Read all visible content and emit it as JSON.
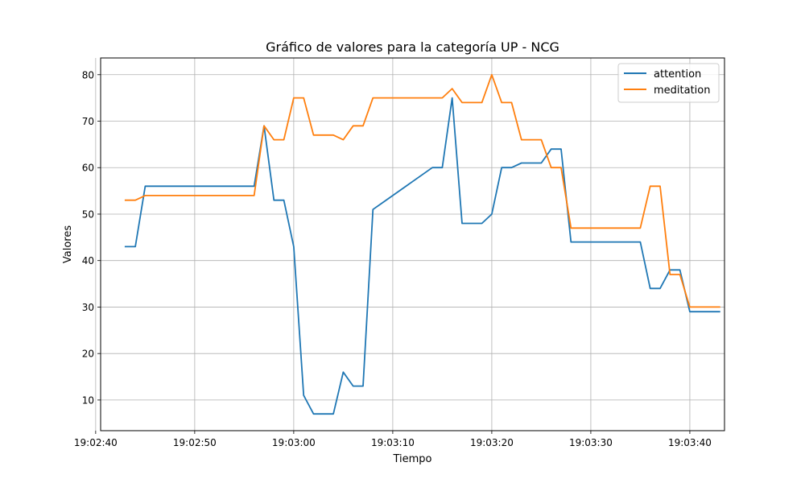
{
  "chart_data": {
    "type": "line",
    "title": "Gráfico de valores para la categoría UP - NCG",
    "xlabel": "Tiempo",
    "ylabel": "Valores",
    "x_unit": "time",
    "xlim": [
      "19:02:40.5",
      "19:03:43.5"
    ],
    "ylim": [
      3.4,
      83.6
    ],
    "x_ticks": [
      "19:02:40",
      "19:02:50",
      "19:03:00",
      "19:03:10",
      "19:03:20",
      "19:03:30",
      "19:03:40"
    ],
    "y_ticks": [
      "10",
      "20",
      "30",
      "40",
      "50",
      "60",
      "70",
      "80"
    ],
    "y_tick_values": [
      10,
      20,
      30,
      40,
      50,
      60,
      70,
      80
    ],
    "grid": true,
    "legend_position": "top-right",
    "x": [
      "19:02:43",
      "19:02:44",
      "19:02:45",
      "19:02:56",
      "19:02:57",
      "19:02:58",
      "19:02:59",
      "19:03:00",
      "19:03:01",
      "19:03:02",
      "19:03:03",
      "19:03:04",
      "19:03:05",
      "19:03:06",
      "19:03:07",
      "19:03:08",
      "19:03:14",
      "19:03:15",
      "19:03:16",
      "19:03:17",
      "19:03:19",
      "19:03:20",
      "19:03:21",
      "19:03:22",
      "19:03:23",
      "19:03:25",
      "19:03:26",
      "19:03:27",
      "19:03:28",
      "19:03:35",
      "19:03:36",
      "19:03:37",
      "19:03:38",
      "19:03:39",
      "19:03:40",
      "19:03:43"
    ],
    "series": [
      {
        "name": "attention",
        "color": "#1f77b4",
        "values": [
          43,
          43,
          56,
          56,
          69,
          53,
          53,
          43,
          11,
          7,
          7,
          7,
          16,
          13,
          13,
          51,
          60,
          60,
          75,
          48,
          48,
          50,
          60,
          60,
          61,
          61,
          64,
          64,
          44,
          44,
          34,
          34,
          38,
          38,
          29,
          29
        ]
      },
      {
        "name": "meditation",
        "color": "#ff7f0e",
        "values": [
          53,
          53,
          54,
          54,
          69,
          66,
          66,
          75,
          75,
          67,
          67,
          67,
          66,
          69,
          69,
          75,
          75,
          75,
          77,
          74,
          74,
          80,
          74,
          74,
          66,
          66,
          60,
          60,
          47,
          47,
          56,
          56,
          37,
          37,
          30,
          30
        ]
      }
    ]
  }
}
